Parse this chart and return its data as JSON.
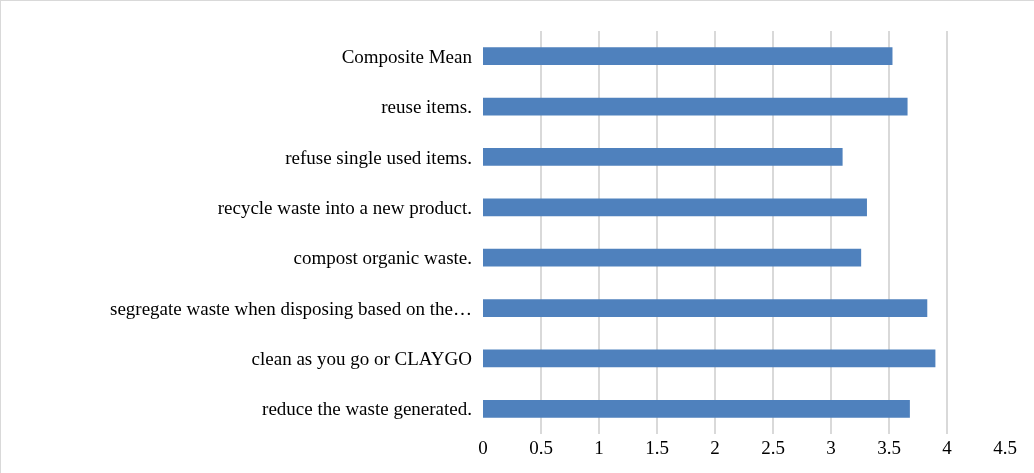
{
  "chart_data": {
    "type": "bar",
    "orientation": "horizontal",
    "categories": [
      "Composite Mean",
      "reuse items.",
      "refuse single used items.",
      "recycle waste into a new product.",
      "compost organic waste.",
      "segregate waste when disposing based on the…",
      "clean as you go or CLAYGO",
      "reduce the waste generated."
    ],
    "values": [
      3.53,
      3.66,
      3.1,
      3.31,
      3.26,
      3.83,
      3.9,
      3.68
    ],
    "color": "#4f81bd",
    "xlim": [
      0,
      4.5
    ],
    "xticks": [
      0,
      0.5,
      1,
      1.5,
      2,
      2.5,
      3,
      3.5,
      4,
      4.5
    ],
    "grid": "x",
    "legend": false
  }
}
